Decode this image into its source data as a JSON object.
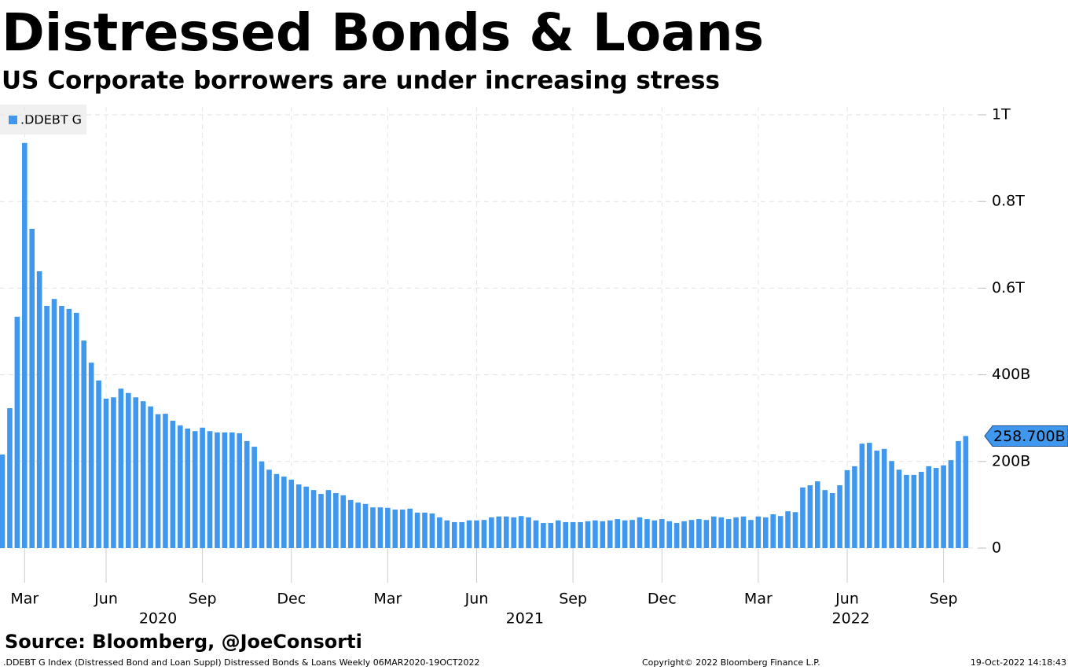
{
  "chart_data": {
    "type": "bar",
    "title": "Distressed Bonds & Loans",
    "subtitle": "US Corporate borrowers are under increasing stress",
    "legend": ".DDEBT G",
    "color": "#3f98ee",
    "grid": true,
    "ylim": [
      0,
      1000
    ],
    "yticks": [
      0,
      {
        "value": 200,
        "label": "200B"
      },
      {
        "value": 400,
        "label": "400B"
      },
      {
        "value": 600,
        "label": "0.6T"
      },
      {
        "value": 800,
        "label": "0.8T"
      },
      {
        "value": 1000,
        "label": "1T"
      }
    ],
    "categories": [
      null,
      null,
      null,
      "Mar",
      null,
      null,
      null,
      null,
      null,
      null,
      null,
      null,
      null,
      null,
      "Jun",
      null,
      null,
      null,
      null,
      null,
      null,
      null,
      null,
      null,
      null,
      null,
      null,
      "Sep",
      null,
      null,
      null,
      null,
      null,
      null,
      null,
      null,
      null,
      null,
      null,
      "Dec",
      null,
      null,
      null,
      null,
      null,
      null,
      null,
      null,
      null,
      null,
      null,
      null,
      "Mar",
      null,
      null,
      null,
      null,
      null,
      null,
      null,
      null,
      null,
      null,
      null,
      "Jun",
      null,
      null,
      null,
      null,
      null,
      null,
      null,
      null,
      null,
      null,
      null,
      null,
      "Sep",
      null,
      null,
      null,
      null,
      null,
      null,
      null,
      null,
      null,
      null,
      null,
      "Dec",
      null,
      null,
      null,
      null,
      null,
      null,
      null,
      null,
      null,
      null,
      null,
      null,
      "Mar",
      null,
      null,
      null,
      null,
      null,
      null,
      null,
      null,
      null,
      null,
      null,
      "Jun",
      null,
      null,
      null,
      null,
      null,
      null,
      null,
      null,
      null,
      null,
      null,
      null,
      "Sep",
      null,
      null,
      null
    ],
    "years": [
      "2020",
      "2021",
      "2022"
    ],
    "values": [
      216,
      323,
      534,
      935,
      737,
      639,
      559,
      575,
      559,
      552,
      543,
      479,
      428,
      387,
      345,
      348,
      368,
      358,
      348,
      339,
      327,
      309,
      310,
      294,
      283,
      276,
      270,
      278,
      270,
      267,
      267,
      267,
      265,
      247,
      234,
      200,
      181,
      171,
      165,
      158,
      147,
      142,
      134,
      125,
      134,
      127,
      122,
      111,
      105,
      102,
      94,
      94,
      93,
      89,
      89,
      91,
      82,
      82,
      80,
      71,
      64,
      60,
      60,
      64,
      64,
      65,
      71,
      73,
      73,
      71,
      74,
      71,
      64,
      58,
      58,
      64,
      60,
      60,
      60,
      62,
      64,
      62,
      64,
      67,
      64,
      65,
      71,
      67,
      64,
      67,
      62,
      58,
      62,
      65,
      67,
      65,
      73,
      71,
      67,
      71,
      73,
      65,
      73,
      71,
      78,
      74,
      85,
      83,
      140,
      145,
      154,
      134,
      127,
      145,
      180,
      189,
      241,
      243,
      225,
      229,
      201,
      181,
      169,
      169,
      176,
      189,
      185,
      191,
      203,
      247,
      258.7
    ],
    "value_labels": [
      null,
      null,
      null,
      null,
      null,
      null,
      null,
      null,
      null,
      null,
      null,
      null,
      null,
      null,
      null,
      null,
      null,
      null,
      null,
      null,
      null,
      null,
      null,
      null,
      null,
      null,
      null,
      null,
      null,
      null,
      null,
      null,
      null,
      null,
      null,
      null,
      null,
      null,
      null,
      null,
      null,
      null,
      null,
      null,
      null,
      null,
      null,
      null,
      null,
      null,
      null,
      null,
      null,
      null,
      null,
      null,
      null,
      null,
      null,
      null,
      null,
      null,
      null,
      null,
      null,
      null,
      null,
      null,
      null,
      null,
      null,
      null,
      null,
      null,
      null,
      null,
      null,
      null,
      null,
      null,
      null,
      null,
      null,
      null,
      null,
      null,
      null,
      null,
      null,
      null,
      null,
      null,
      null,
      null,
      null,
      null,
      null,
      null,
      null,
      null,
      null,
      null,
      null,
      null,
      null,
      null,
      null,
      null,
      null,
      null,
      null,
      null,
      null,
      null,
      null,
      null,
      null,
      null,
      null,
      null,
      null,
      null,
      null,
      null,
      null,
      null,
      null,
      null,
      null,
      null,
      "258.700B"
    ],
    "source": "Source: Bloomberg, @JoeConsorti",
    "footer_left": ".DDEBT G Index (Distressed Bond and Loan Suppl) Distressed Bonds & Loans  Weekly 06MAR2020-19OCT2022",
    "footer_center": "Copyright© 2022 Bloomberg Finance L.P.",
    "footer_right": "19-Oct-2022 14:18:43"
  }
}
